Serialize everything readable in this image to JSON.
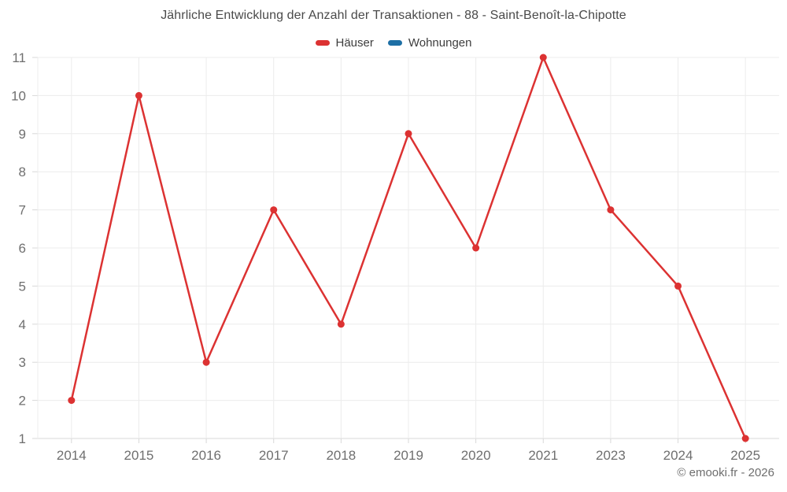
{
  "page": {
    "copyright": "© emooki.fr - 2026"
  },
  "chart_data": {
    "type": "line",
    "title": "Jährliche Entwicklung der Anzahl der Transaktionen - 88 - Saint-Benoît-la-Chipotte",
    "categories": [
      "2014",
      "2015",
      "2016",
      "2017",
      "2018",
      "2019",
      "2020",
      "2021",
      "2023",
      "2024",
      "2025"
    ],
    "series": [
      {
        "name": "Häuser",
        "color": "#dc3232",
        "values": [
          2,
          10,
          3,
          7,
          4,
          9,
          6,
          11,
          7,
          5,
          1
        ]
      },
      {
        "name": "Wohnungen",
        "color": "#1d6fa5",
        "values": []
      }
    ],
    "ylim": [
      1,
      11
    ],
    "yticks": [
      1,
      2,
      3,
      4,
      5,
      6,
      7,
      8,
      9,
      10,
      11
    ],
    "grid": true,
    "legend_position": "top",
    "marker": "circle",
    "styles": {
      "grid_color": "#ececec",
      "axis_color": "#d8d8d8",
      "tick_label_color": "#6f6f6f"
    }
  }
}
